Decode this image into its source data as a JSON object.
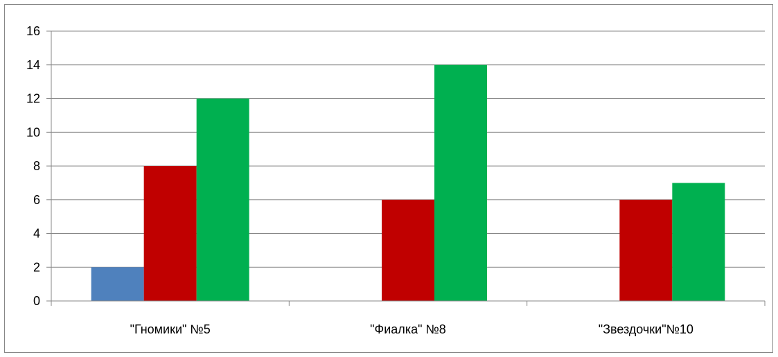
{
  "chart_data": {
    "type": "bar",
    "categories": [
      "\"Гномики\" №5",
      "\"Фиалка\" №8",
      "\"Звездочки\"№10"
    ],
    "series": [
      {
        "color": "#4f81bd",
        "values": [
          2,
          0,
          0
        ]
      },
      {
        "color": "#c00000",
        "values": [
          8,
          6,
          6
        ]
      },
      {
        "color": "#00b050",
        "values": [
          12,
          14,
          7
        ]
      }
    ],
    "ylim": [
      0,
      16
    ],
    "yticks": [
      0,
      2,
      4,
      6,
      8,
      10,
      12,
      14,
      16
    ],
    "grid": true,
    "title": "",
    "xlabel": "",
    "ylabel": ""
  }
}
